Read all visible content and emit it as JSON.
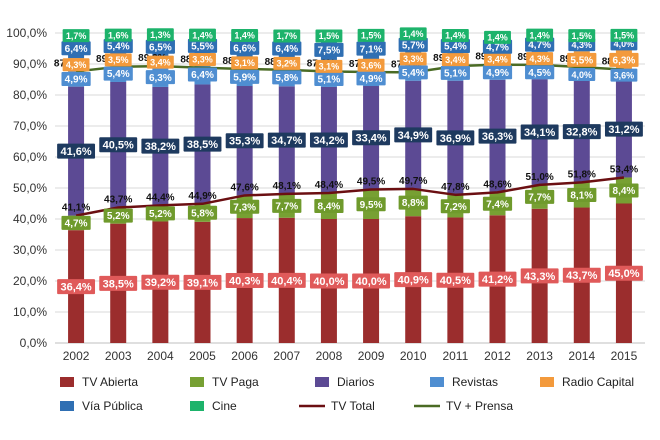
{
  "chart_data": {
    "type": "bar",
    "stacked": true,
    "categories": [
      "2002",
      "2003",
      "2004",
      "2005",
      "2006",
      "2007",
      "2008",
      "2009",
      "2010",
      "2011",
      "2012",
      "2013",
      "2014",
      "2015"
    ],
    "ylim": [
      0,
      100
    ],
    "y_ticks": [
      "0,0%",
      "10,0%",
      "20,0%",
      "30,0%",
      "40,0%",
      "50,0%",
      "60,0%",
      "70,0%",
      "80,0%",
      "90,0%",
      "100,0%"
    ],
    "grid": true,
    "legend_position": "bottom",
    "series": [
      {
        "name": "TV Abierta",
        "kind": "bar",
        "color": "#9b2d2d",
        "label_bg": "#e05a5a",
        "values": [
          36.4,
          38.5,
          39.2,
          39.1,
          40.3,
          40.4,
          40.0,
          40.0,
          40.9,
          40.5,
          41.2,
          43.3,
          43.7,
          45.0
        ],
        "labels": [
          "36,4%",
          "38,5%",
          "39,2%",
          "39,1%",
          "40,3%",
          "40,4%",
          "40,0%",
          "40,0%",
          "40,9%",
          "40,5%",
          "41,2%",
          "43,3%",
          "43,7%",
          "45,0%"
        ]
      },
      {
        "name": "TV Paga",
        "kind": "bar",
        "color": "#77a033",
        "label_bg": "#6f9a2c",
        "values": [
          4.7,
          5.2,
          5.2,
          5.8,
          7.3,
          7.7,
          8.4,
          9.5,
          8.8,
          7.2,
          7.4,
          7.7,
          8.1,
          8.4
        ],
        "labels": [
          "4,7%",
          "5,2%",
          "5,2%",
          "5,8%",
          "7,3%",
          "7,7%",
          "8,4%",
          "9,5%",
          "8,8%",
          "7,2%",
          "7,4%",
          "7,7%",
          "8,1%",
          "8,4%"
        ]
      },
      {
        "name": "Diarios",
        "kind": "bar",
        "color": "#5c4a94",
        "label_bg": "#1e3a5f",
        "values": [
          41.6,
          40.5,
          38.2,
          38.5,
          35.3,
          34.7,
          34.2,
          33.4,
          34.9,
          36.9,
          36.3,
          34.1,
          32.8,
          31.2
        ],
        "labels": [
          "41,6%",
          "40,5%",
          "38,2%",
          "38,5%",
          "35,3%",
          "34,7%",
          "34,2%",
          "33,4%",
          "34,9%",
          "36,9%",
          "36,3%",
          "34,1%",
          "32,8%",
          "31,2%"
        ]
      },
      {
        "name": "Revistas",
        "kind": "bar",
        "color": "#4f8ed1",
        "label_bg": "#4f8ed1",
        "values": [
          4.9,
          5.4,
          6.3,
          6.4,
          5.9,
          5.8,
          5.1,
          4.9,
          5.4,
          5.1,
          4.9,
          4.5,
          4.0,
          3.6
        ],
        "labels": [
          "4,9%",
          "5,4%",
          "6,3%",
          "6,4%",
          "5,9%",
          "5,8%",
          "5,1%",
          "4,9%",
          "5,4%",
          "5,1%",
          "4,9%",
          "4,5%",
          "4,0%",
          "3,6%"
        ]
      },
      {
        "name": "Radio Capital",
        "kind": "bar",
        "color": "#f39a3c",
        "label_bg": "#f39a3c",
        "values": [
          4.3,
          3.5,
          3.4,
          3.3,
          3.1,
          3.2,
          3.1,
          3.6,
          3.3,
          3.4,
          3.4,
          4.3,
          5.5,
          6.3
        ],
        "labels": [
          "4,3%",
          "3,5%",
          "3,4%",
          "3,3%",
          "3,1%",
          "3,2%",
          "3,1%",
          "3,6%",
          "3,3%",
          "3,4%",
          "3,4%",
          "4,3%",
          "5,5%",
          "6,3%"
        ]
      },
      {
        "name": "Vía Pública",
        "kind": "bar",
        "color": "#2f6fb3",
        "label_bg": "#2f6fb3",
        "values": [
          6.4,
          5.4,
          6.5,
          5.5,
          6.6,
          6.4,
          7.5,
          7.1,
          5.7,
          5.4,
          4.7,
          4.7,
          4.3,
          4.0
        ],
        "labels": [
          "6,4%",
          "5,4%",
          "6,5%",
          "5,5%",
          "6,6%",
          "6,4%",
          "7,5%",
          "7,1%",
          "5,7%",
          "5,4%",
          "4,7%",
          "4,7%",
          "4,3%",
          "4,0%"
        ]
      },
      {
        "name": "Cine",
        "kind": "bar",
        "color": "#1db36b",
        "label_bg": "#1db36b",
        "values": [
          1.7,
          1.6,
          1.3,
          1.4,
          1.4,
          1.7,
          1.5,
          1.5,
          1.4,
          1.4,
          1.4,
          1.4,
          1.5,
          1.5
        ],
        "labels": [
          "1,7%",
          "1,6%",
          "1,3%",
          "1,4%",
          "1,4%",
          "1,7%",
          "1,5%",
          "1,5%",
          "1,4%",
          "1,4%",
          "1,4%",
          "1,4%",
          "1,5%",
          "1,5%"
        ]
      },
      {
        "name": "TV Total",
        "kind": "line",
        "color": "#6b0f12",
        "values": [
          41.1,
          43.7,
          44.4,
          44.9,
          47.6,
          48.1,
          48.4,
          49.5,
          49.7,
          47.8,
          48.6,
          51.0,
          51.8,
          53.4
        ],
        "labels": [
          "41,1%",
          "43,7%",
          "44,4%",
          "44,9%",
          "47,6%",
          "48,1%",
          "48,4%",
          "49,5%",
          "49,7%",
          "47,8%",
          "48,6%",
          "51,0%",
          "51,8%",
          "53,4%"
        ]
      },
      {
        "name": "TV + Prensa",
        "kind": "line",
        "color": "#4a6b24",
        "values": [
          87.6,
          89.1,
          89.3,
          88.8,
          88.4,
          88.1,
          87.6,
          87.4,
          87.3,
          89.3,
          89.8,
          89.7,
          89.0,
          88.2
        ],
        "labels": [
          "87,6%",
          "89,1%",
          "89,3%",
          "88,8%",
          "88,4%",
          "88,1%",
          "87,6%",
          "87,4%",
          "87,3%",
          "89,3%",
          "89,8%",
          "89,7%",
          "89,0%",
          "88,2%"
        ]
      }
    ]
  }
}
